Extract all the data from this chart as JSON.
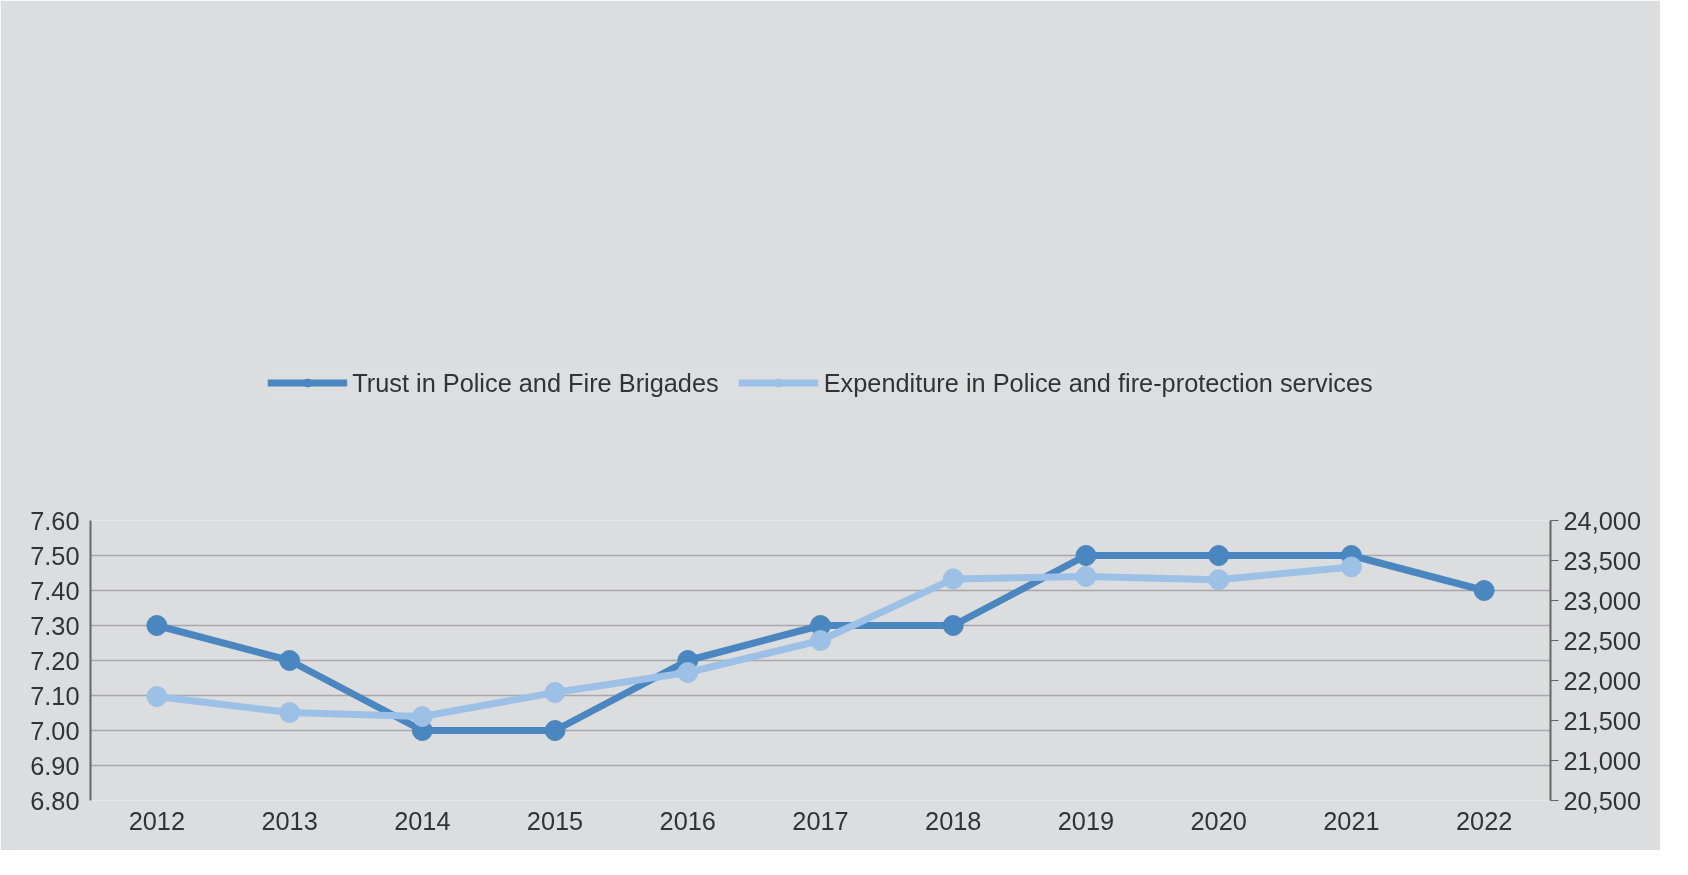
{
  "chart_data": {
    "type": "line",
    "categories": [
      "2012",
      "2013",
      "2014",
      "2015",
      "2016",
      "2017",
      "2018",
      "2019",
      "2020",
      "2021",
      "2022"
    ],
    "series": [
      {
        "name": "Trust in Police and Fire Brigades",
        "color": "#4a86bf",
        "values": [
          7.3,
          7.2,
          7.0,
          7.0,
          7.2,
          7.3,
          7.3,
          7.5,
          7.5,
          7.5,
          7.4
        ]
      },
      {
        "name": "Expenditure in Police and fire-protection services",
        "color": "#9dc0e6",
        "axis": "y2",
        "values": [
          21800,
          21600,
          21550,
          21850,
          22100,
          22500,
          23270,
          23300,
          23260,
          23420,
          null
        ]
      }
    ],
    "ylim": [
      6.8,
      7.6
    ],
    "yticks": [
      {
        "value": 6.8,
        "label": "6.80"
      },
      {
        "value": 6.9,
        "label": "6.90"
      },
      {
        "value": 7.0,
        "label": "7.00"
      },
      {
        "value": 7.1,
        "label": "7.10"
      },
      {
        "value": 7.2,
        "label": "7.20"
      },
      {
        "value": 7.3,
        "label": "7.30"
      },
      {
        "value": 7.4,
        "label": "7.40"
      },
      {
        "value": 7.5,
        "label": "7.50"
      },
      {
        "value": 7.6,
        "label": "7.60"
      }
    ],
    "y2lim": [
      20500,
      24000
    ],
    "y2ticks": [
      {
        "value": 20500,
        "label": "20,500"
      },
      {
        "value": 21000,
        "label": "21,000"
      },
      {
        "value": 21500,
        "label": "21,500"
      },
      {
        "value": 22000,
        "label": "22,000"
      },
      {
        "value": 22500,
        "label": "22,500"
      },
      {
        "value": 23000,
        "label": "23,000"
      },
      {
        "value": 23500,
        "label": "23,500"
      },
      {
        "value": 24000,
        "label": "24,000"
      }
    ],
    "grid": "y",
    "legend": "top",
    "marker": "circle",
    "line_style": "solid"
  }
}
